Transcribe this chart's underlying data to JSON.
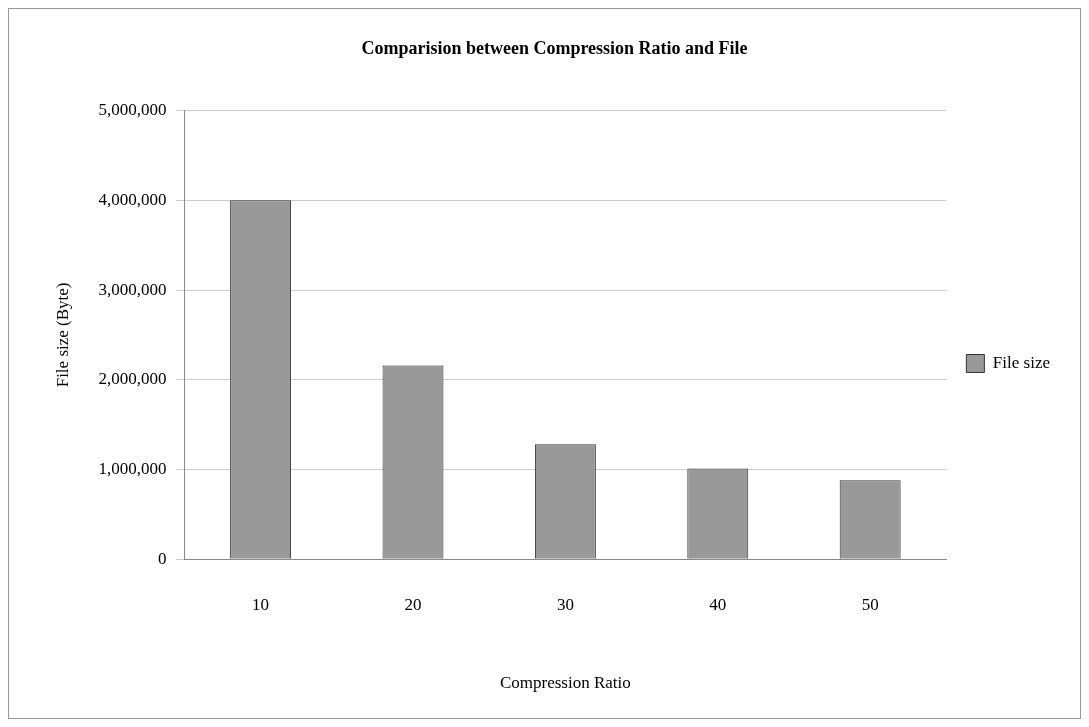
{
  "chart_data": {
    "type": "bar",
    "title": "Comparision between Compression Ratio and File",
    "xlabel": "Compression Ratio",
    "ylabel": "File size (Byte)",
    "categories": [
      "10",
      "20",
      "30",
      "40",
      "50"
    ],
    "series": [
      {
        "name": "File size",
        "color": "#999999",
        "values": [
          4000000,
          2160000,
          1280000,
          1010000,
          880000
        ]
      }
    ],
    "ylim": [
      0,
      5000000
    ],
    "yticks": [
      0,
      {
        "value": 1000000,
        "label": "1,000,000"
      },
      {
        "value": 2000000,
        "label": "2,000,000"
      },
      {
        "value": 3000000,
        "label": "3,000,000"
      },
      {
        "value": 4000000,
        "label": "4,000,000"
      },
      {
        "value": 5000000,
        "label": "5,000,000"
      }
    ],
    "grid": "y",
    "legend": "right"
  }
}
